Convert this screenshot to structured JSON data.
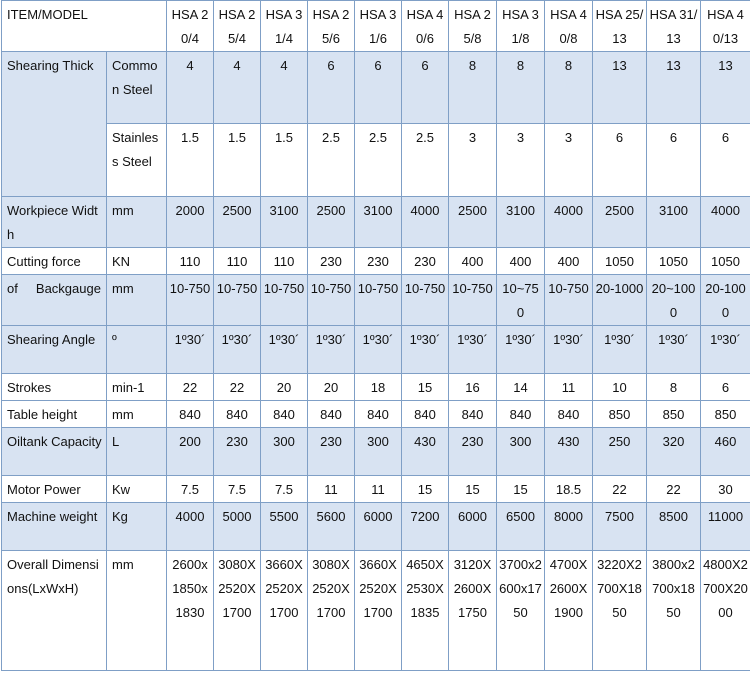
{
  "table": {
    "header": {
      "item_label": "ITEM/MODEL",
      "models": [
        "HSA 20/4",
        "HSA 25/4",
        "HSA 31/4",
        "HSA 25/6",
        "HSA 31/6",
        "HSA 40/6",
        "HSA 25/8",
        "HSA 31/8",
        "HSA 40/8",
        "HSA 25/13",
        "HSA 31/13",
        "HSA 40/13"
      ]
    },
    "rows": [
      {
        "item": "Shearing Thick",
        "unit": "Common Steel",
        "values": [
          "4",
          "4",
          "4",
          "6",
          "6",
          "6",
          "8",
          "8",
          "8",
          "13",
          "13",
          "13"
        ]
      },
      {
        "item": "",
        "unit": "Stainless Steel",
        "values": [
          "1.5",
          "1.5",
          "1.5",
          "2.5",
          "2.5",
          "2.5",
          "3",
          "3",
          "3",
          "6",
          "6",
          "6"
        ]
      },
      {
        "item": "Workpiece Width",
        "unit": "mm",
        "values": [
          "2000",
          "2500",
          "3100",
          "2500",
          "3100",
          "4000",
          "2500",
          "3100",
          "4000",
          "2500",
          "3100",
          "4000"
        ]
      },
      {
        "item": "Cutting force",
        "unit": "KN",
        "values": [
          "110",
          "110",
          "110",
          "230",
          "230",
          "230",
          "400",
          "400",
          "400",
          "1050",
          "1050",
          "1050"
        ]
      },
      {
        "item": "of     Backgauge",
        "unit": "mm",
        "values": [
          "10-750",
          "10-750",
          "10-750",
          "10-750",
          "10-750",
          "10-750",
          "10-750",
          "10~750",
          "10-750",
          "20-1000",
          "20~1000",
          "20-1000"
        ]
      },
      {
        "item": "Shearing Angle",
        "unit": "º",
        "values": [
          "1º30´",
          "1º30´",
          "1º30´",
          "1º30´",
          "1º30´",
          "1º30´",
          "1º30´",
          "1º30´",
          "1º30´",
          "1º30´",
          "1º30´",
          "1º30´"
        ]
      },
      {
        "item": "Strokes",
        "unit": "min-1",
        "values": [
          "22",
          "22",
          "20",
          "20",
          "18",
          "15",
          "16",
          "14",
          "11",
          "10",
          "8",
          "6"
        ]
      },
      {
        "item": "Table height",
        "unit": "mm",
        "values": [
          "840",
          "840",
          "840",
          "840",
          "840",
          "840",
          "840",
          "840",
          "840",
          "850",
          "850",
          "850"
        ]
      },
      {
        "item": "Oiltank Capacity",
        "unit": "L",
        "values": [
          "200",
          "230",
          "300",
          "230",
          "300",
          "430",
          "230",
          "300",
          "430",
          "250",
          "320",
          "460"
        ]
      },
      {
        "item": "Motor Power",
        "unit": "Kw",
        "values": [
          "7.5",
          "7.5",
          "7.5",
          "11",
          "11",
          "15",
          "15",
          "15",
          "18.5",
          "22",
          "22",
          "30"
        ]
      },
      {
        "item": "Machine weight",
        "unit": "Kg",
        "values": [
          "4000",
          "5000",
          "5500",
          "5600",
          "6000",
          "7200",
          "6000",
          "6500",
          "8000",
          "7500",
          "8500",
          "11000"
        ]
      },
      {
        "item": "Overall Dimensions(LxWxH)",
        "unit": "mm",
        "values": [
          "2600x1850x1830",
          "3080X2520X1700",
          "3660X2520X1700",
          "3080X2520X1700",
          "3660X2520X1700",
          "4650X2530X1835",
          "3120X2600X1750",
          "3700x2600x1750",
          "4700X2600X1900",
          "3220X2700X1850",
          "3800x2700x1850",
          "4800X2700X2000"
        ]
      }
    ]
  }
}
